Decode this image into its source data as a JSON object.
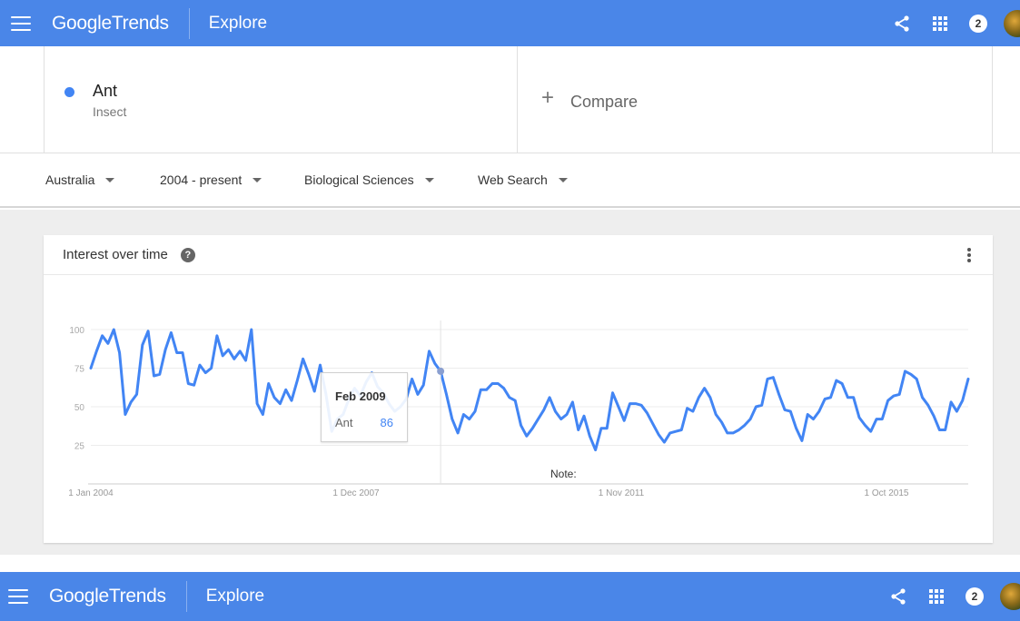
{
  "header": {
    "brand_google": "Google",
    "brand_trends": "Trends",
    "section": "Explore",
    "notification_count": "2"
  },
  "search_term": {
    "name": "Ant",
    "category": "Insect",
    "color": "#4285f4"
  },
  "compare": {
    "label": "Compare",
    "plus": "+"
  },
  "filters": {
    "region": "Australia",
    "time": "2004 - present",
    "category": "Biological Sciences",
    "search_type": "Web Search"
  },
  "card": {
    "title": "Interest over time",
    "help": "?"
  },
  "tooltip": {
    "title": "Feb 2009",
    "series": "Ant",
    "value": "86"
  },
  "note": "Note:",
  "chart_data": {
    "type": "line",
    "x_tick_labels": [
      "1 Jan 2004",
      "1 Dec 2007",
      "1 Nov 2011",
      "1 Oct 2015"
    ],
    "x_range": [
      "Jan 2004",
      "Jun 2017"
    ],
    "ylim": [
      0,
      100
    ],
    "y_ticks": [
      25,
      50,
      75,
      100
    ],
    "grid": true,
    "series": [
      {
        "name": "Ant",
        "color": "#4285f4",
        "values": [
          75,
          86,
          96,
          91,
          100,
          85,
          45,
          53,
          58,
          90,
          99,
          70,
          71,
          87,
          98,
          85,
          85,
          65,
          64,
          77,
          72,
          75,
          96,
          83,
          87,
          81,
          86,
          80,
          100,
          52,
          45,
          65,
          56,
          52,
          61,
          54,
          67,
          81,
          71,
          60,
          77,
          58,
          34,
          42,
          45,
          55,
          62,
          57,
          66,
          72,
          63,
          59,
          52,
          47,
          50,
          55,
          68,
          58,
          64,
          86,
          78,
          73,
          58,
          42,
          33,
          45,
          42,
          47,
          61,
          61,
          65,
          65,
          62,
          56,
          54,
          38,
          31,
          36,
          42,
          48,
          56,
          47,
          42,
          45,
          53,
          35,
          44,
          31,
          22,
          36,
          36,
          59,
          50,
          41,
          52,
          52,
          51,
          46,
          39,
          32,
          27,
          33,
          34,
          35,
          49,
          47,
          56,
          62,
          56,
          45,
          40,
          33,
          33,
          35,
          38,
          42,
          50,
          51,
          68,
          69,
          58,
          48,
          47,
          36,
          28,
          45,
          42,
          47,
          55,
          56,
          67,
          65,
          56,
          56,
          43,
          38,
          34,
          42,
          42,
          54,
          57,
          58,
          73,
          71,
          68,
          56,
          51,
          44,
          35,
          35,
          53,
          47,
          54,
          68
        ]
      }
    ]
  }
}
